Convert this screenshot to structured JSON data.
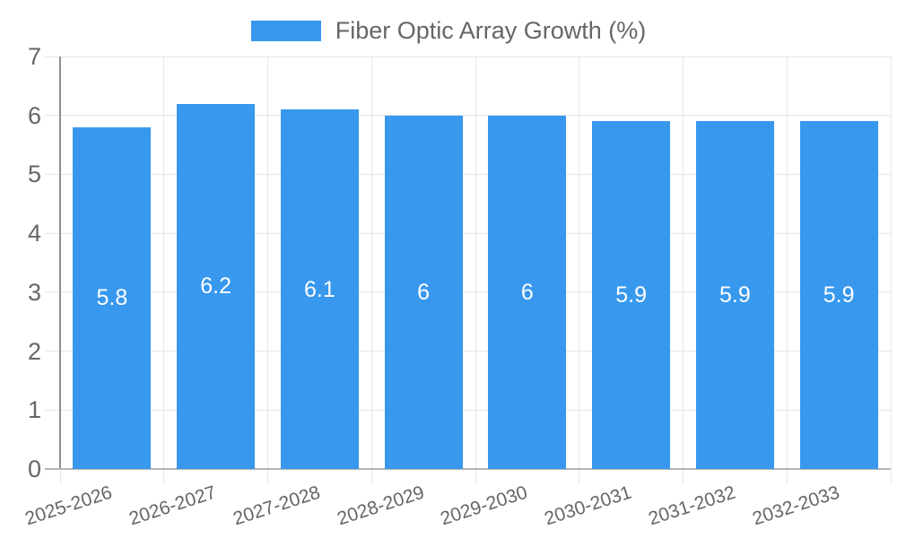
{
  "chart_data": {
    "type": "bar",
    "title": "Fiber Optic Array Growth (%)",
    "categories": [
      "2025-2026",
      "2026-2027",
      "2027-2028",
      "2028-2029",
      "2029-2030",
      "2030-2031",
      "2031-2032",
      "2032-2033"
    ],
    "values": [
      5.8,
      6.2,
      6.1,
      6,
      6,
      5.9,
      5.9,
      5.9
    ],
    "xlabel": "",
    "ylabel": "",
    "ylim": [
      0,
      7
    ],
    "yticks": [
      0,
      1,
      2,
      3,
      4,
      5,
      6,
      7
    ],
    "grid": true,
    "legend_position": "top",
    "bar_color": "#3898ee",
    "grid_color": "#e6e6e6",
    "y_axis_color": "#8f8f8f",
    "x_axis_color": "#b3b3b3",
    "text_color": "#666666",
    "value_label_color": "#ffffff"
  }
}
